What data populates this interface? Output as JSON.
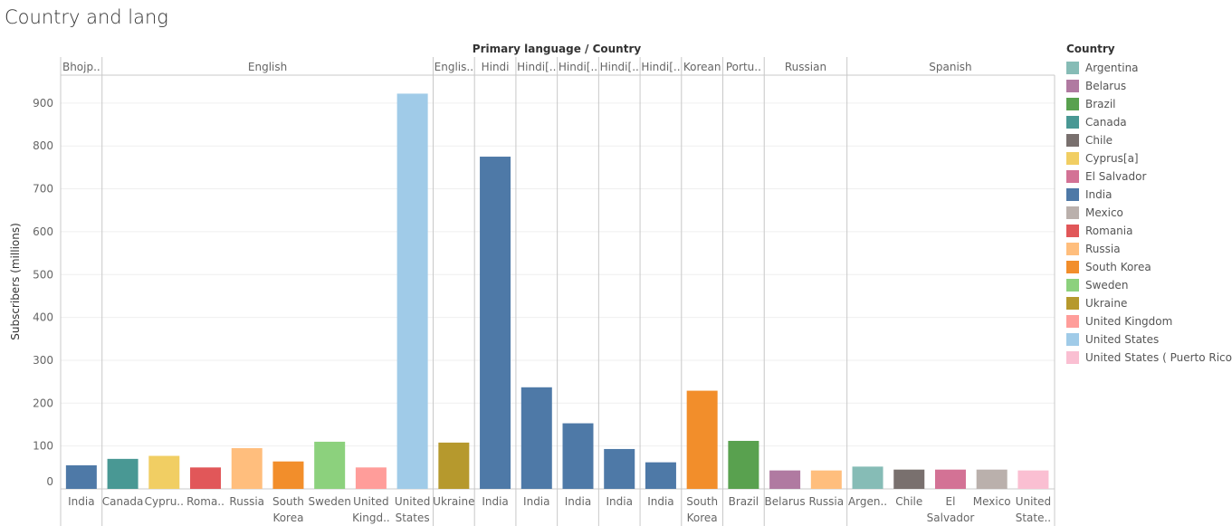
{
  "page_title": "Country and lang",
  "chart_data": {
    "type": "bar",
    "column_header": "Primary language / Country",
    "ylabel": "Subscribers (millions)",
    "yticks": [
      0,
      100,
      200,
      300,
      400,
      500,
      600,
      700,
      800,
      900
    ],
    "ylim": [
      0,
      950
    ],
    "grid": true,
    "legend_placement": "right",
    "groups": [
      {
        "label": "Bhojp..",
        "bars": [
          {
            "label": "India",
            "country": "India",
            "value": 55
          }
        ]
      },
      {
        "label": "English",
        "bars": [
          {
            "label": "Canada",
            "country": "Canada",
            "value": 70
          },
          {
            "label": "Cypru..",
            "country": "Cyprus[a]",
            "value": 77
          },
          {
            "label": "Roma..",
            "country": "Romania",
            "value": 50
          },
          {
            "label": "Russia",
            "country": "Russia",
            "value": 95
          },
          {
            "label": "South Korea",
            "country": "South Korea",
            "value": 64
          },
          {
            "label": "Sweden",
            "country": "Sweden",
            "value": 110
          },
          {
            "label": "United Kingd..",
            "country": "United Kingdom",
            "value": 50
          },
          {
            "label": "United States",
            "country": "United States",
            "value": 922
          }
        ]
      },
      {
        "label": "Englis..",
        "bars": [
          {
            "label": "Ukraine",
            "country": "Ukraine",
            "value": 108
          }
        ]
      },
      {
        "label": "Hindi",
        "bars": [
          {
            "label": "India",
            "country": "India",
            "value": 775
          }
        ]
      },
      {
        "label": "Hindi[..",
        "bars": [
          {
            "label": "India",
            "country": "India",
            "value": 237
          }
        ]
      },
      {
        "label": "Hindi[..",
        "bars": [
          {
            "label": "India",
            "country": "India",
            "value": 153
          }
        ]
      },
      {
        "label": "Hindi[..",
        "bars": [
          {
            "label": "India",
            "country": "India",
            "value": 93
          }
        ]
      },
      {
        "label": "Hindi[..",
        "bars": [
          {
            "label": "India",
            "country": "India",
            "value": 62
          }
        ]
      },
      {
        "label": "Korean",
        "bars": [
          {
            "label": "South Korea",
            "country": "South Korea",
            "value": 229
          }
        ]
      },
      {
        "label": "Portu..",
        "bars": [
          {
            "label": "Brazil",
            "country": "Brazil",
            "value": 112
          }
        ]
      },
      {
        "label": "Russian",
        "bars": [
          {
            "label": "Belarus",
            "country": "Belarus",
            "value": 43
          },
          {
            "label": "Russia",
            "country": "Russia",
            "value": 43
          }
        ]
      },
      {
        "label": "Spanish",
        "bars": [
          {
            "label": "Argen..",
            "country": "Argentina",
            "value": 52
          },
          {
            "label": "Chile",
            "country": "Chile",
            "value": 45
          },
          {
            "label": "El Salvador",
            "country": "El Salvador",
            "value": 45
          },
          {
            "label": "Mexico",
            "country": "Mexico",
            "value": 45
          },
          {
            "label": "United State..",
            "country": "United States ( Puerto Rico)",
            "value": 43
          }
        ]
      }
    ]
  },
  "legend": {
    "title": "Country",
    "items": [
      {
        "label": "Argentina",
        "color": "#86BCB6"
      },
      {
        "label": "Belarus",
        "color": "#B07AA1"
      },
      {
        "label": "Brazil",
        "color": "#59A14F"
      },
      {
        "label": "Canada",
        "color": "#499894"
      },
      {
        "label": "Chile",
        "color": "#79706E"
      },
      {
        "label": "Cyprus[a]",
        "color": "#F1CE63"
      },
      {
        "label": "El Salvador",
        "color": "#D37295"
      },
      {
        "label": "India",
        "color": "#4E79A7"
      },
      {
        "label": "Mexico",
        "color": "#BAB0AC"
      },
      {
        "label": "Romania",
        "color": "#E15759"
      },
      {
        "label": "Russia",
        "color": "#FFBE7D"
      },
      {
        "label": "South Korea",
        "color": "#F28E2B"
      },
      {
        "label": "Sweden",
        "color": "#8CD17D"
      },
      {
        "label": "Ukraine",
        "color": "#B6992D"
      },
      {
        "label": "United Kingdom",
        "color": "#FF9D9A"
      },
      {
        "label": "United States",
        "color": "#A0CBE8"
      },
      {
        "label": "United States ( Puerto Rico)",
        "color": "#FABFD2"
      }
    ]
  }
}
